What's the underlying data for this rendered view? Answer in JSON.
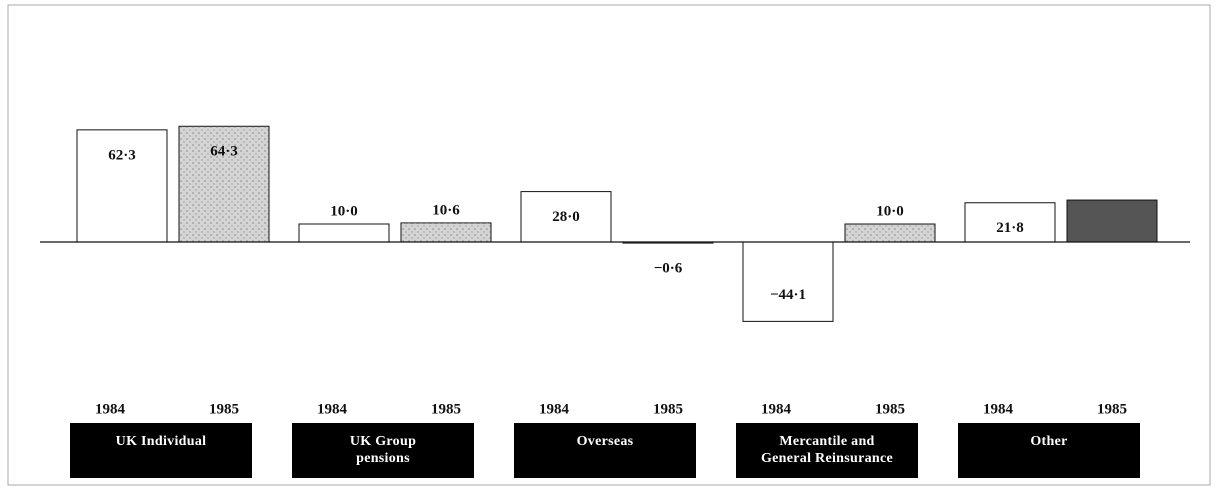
{
  "chart_data": {
    "type": "bar",
    "categories": [
      "UK Individual",
      "UK Group\npensions",
      "Overseas",
      "Mercantile and\nGeneral Reinsurance",
      "Other"
    ],
    "series": [
      {
        "name": "1984",
        "color": "#ffffff",
        "values": [
          62.3,
          10.0,
          28.0,
          -44.1,
          21.8
        ],
        "value_labels": [
          "62·3",
          "10·0",
          "28·0",
          "−44·1",
          "21·8"
        ]
      },
      {
        "name": "1985",
        "color": "#d4d4d4",
        "colors": [
          "#d4d4d4",
          "#d4d4d4",
          "#d4d4d4",
          "#d4d4d4",
          "#555555"
        ],
        "values": [
          64.3,
          10.6,
          -0.6,
          10.0,
          23.3
        ],
        "value_labels": [
          "64·3",
          "10·6",
          "−0·6",
          "10·0",
          null
        ]
      }
    ],
    "ylim": [
      -60,
      80
    ]
  }
}
